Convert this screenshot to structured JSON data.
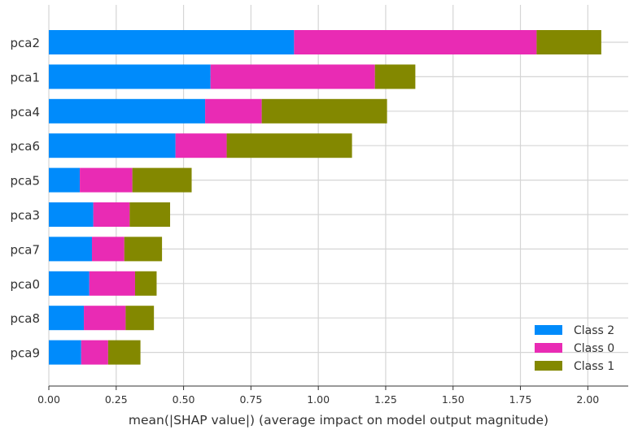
{
  "chart_data": {
    "type": "bar",
    "orientation": "horizontal",
    "stacked": true,
    "categories": [
      "pca2",
      "pca1",
      "pca4",
      "pca6",
      "pca5",
      "pca3",
      "pca7",
      "pca0",
      "pca8",
      "pca9"
    ],
    "series": [
      {
        "name": "Class 2",
        "color": "#008bfb",
        "values": [
          0.91,
          0.6,
          0.58,
          0.47,
          0.115,
          0.165,
          0.16,
          0.15,
          0.13,
          0.12
        ]
      },
      {
        "name": "Class 0",
        "color": "#e92bb4",
        "values": [
          0.9,
          0.61,
          0.21,
          0.19,
          0.195,
          0.135,
          0.12,
          0.17,
          0.155,
          0.1
        ]
      },
      {
        "name": "Class 1",
        "color": "#838800",
        "values": [
          0.24,
          0.15,
          0.465,
          0.465,
          0.22,
          0.15,
          0.14,
          0.08,
          0.105,
          0.12
        ]
      }
    ],
    "xlabel": "mean(|SHAP value|) (average impact on model output magnitude)",
    "ylabel": "",
    "title": "",
    "xlim": [
      0,
      2.15
    ],
    "xticks": [
      "0.00",
      "0.25",
      "0.50",
      "0.75",
      "1.00",
      "1.25",
      "1.50",
      "1.75",
      "2.00"
    ],
    "grid": true,
    "legend_position": "bottom-right"
  }
}
